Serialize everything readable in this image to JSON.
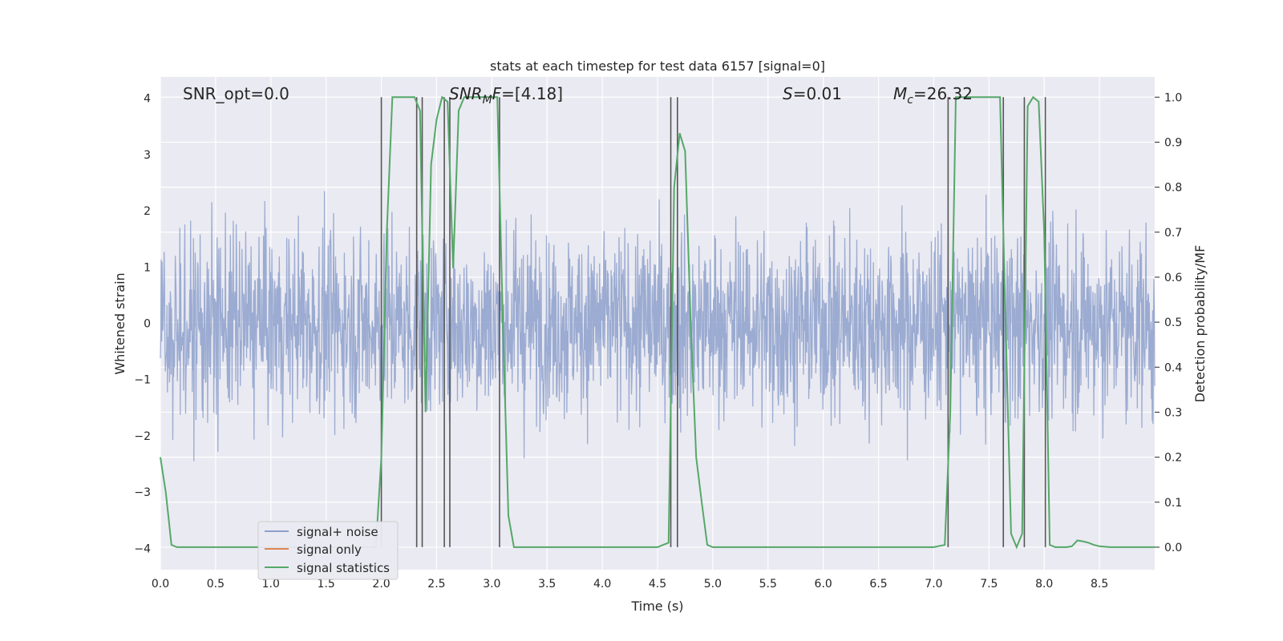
{
  "chart_data": {
    "type": "line",
    "title": "stats at each timestep for test data 6157 [signal=0]",
    "xlabel": "Time (s)",
    "ylabel_left": "Whitened strain",
    "ylabel_right": "Detection probability/MF",
    "xlim": [
      0,
      9
    ],
    "ylim_left": [
      -4.38,
      4.38
    ],
    "ylim_right": [
      -0.05,
      1.045
    ],
    "x_ticks": [
      "0.0",
      "0.5",
      "1.0",
      "1.5",
      "2.0",
      "2.5",
      "3.0",
      "3.5",
      "4.0",
      "4.5",
      "5.0",
      "5.5",
      "6.0",
      "6.5",
      "7.0",
      "7.5",
      "8.0",
      "8.5"
    ],
    "y_ticks_left": [
      "−4",
      "−3",
      "−2",
      "−1",
      "0",
      "1",
      "2",
      "3",
      "4"
    ],
    "y_ticks_right": [
      "0.0",
      "0.1",
      "0.2",
      "0.3",
      "0.4",
      "0.5",
      "0.6",
      "0.7",
      "0.8",
      "0.9",
      "1.0"
    ],
    "grid": true,
    "legend_position": "lower-left",
    "annotations": {
      "snr_opt": "SNR_opt=0.0",
      "snr_mf": "SNR_MF=[4.18]",
      "s_value": "S=0.01",
      "mc_value": "M_c=26.32"
    },
    "series": [
      {
        "name": "signal+ noise",
        "axis": "left",
        "color": "#8da0cb",
        "description_values": "whitened noise, roughly within [-3.5, 3.3], sampled densely over 0-9 s"
      },
      {
        "name": "signal only",
        "axis": "left",
        "color": "#dd8452",
        "x": [],
        "y": []
      },
      {
        "name": "signal statistics",
        "axis": "right",
        "color": "#55a868",
        "x": [
          0.0,
          0.05,
          0.1,
          0.15,
          0.2,
          0.3,
          0.5,
          1.0,
          1.5,
          1.9,
          1.95,
          2.0,
          2.05,
          2.1,
          2.15,
          2.2,
          2.25,
          2.3,
          2.35,
          2.4,
          2.45,
          2.5,
          2.55,
          2.6,
          2.65,
          2.7,
          2.75,
          2.8,
          2.85,
          2.9,
          2.95,
          3.0,
          3.05,
          3.1,
          3.15,
          3.2,
          3.5,
          4.0,
          4.5,
          4.55,
          4.6,
          4.65,
          4.7,
          4.75,
          4.8,
          4.85,
          4.9,
          4.95,
          5.0,
          5.5,
          6.0,
          6.5,
          7.0,
          7.1,
          7.15,
          7.2,
          7.25,
          7.3,
          7.4,
          7.5,
          7.55,
          7.6,
          7.65,
          7.7,
          7.75,
          7.8,
          7.85,
          7.9,
          7.95,
          8.0,
          8.05,
          8.1,
          8.15,
          8.2,
          8.25,
          8.3,
          8.35,
          8.4,
          8.45,
          8.5,
          8.6,
          8.7,
          8.8,
          8.9,
          9.0
        ],
        "y": [
          0.2,
          0.12,
          0.005,
          0.0,
          0.0,
          0.0,
          0.0,
          0.0,
          0.0,
          0.0,
          0.0,
          0.2,
          0.7,
          1.0,
          1.0,
          1.0,
          1.0,
          1.0,
          0.97,
          0.3,
          0.85,
          0.95,
          1.0,
          0.99,
          0.62,
          0.97,
          1.0,
          1.0,
          1.0,
          1.0,
          1.0,
          1.0,
          1.0,
          0.5,
          0.07,
          0.0,
          0.0,
          0.0,
          0.0,
          0.005,
          0.01,
          0.8,
          0.92,
          0.88,
          0.5,
          0.2,
          0.1,
          0.005,
          0.0,
          0.0,
          0.0,
          0.0,
          0.0,
          0.005,
          0.3,
          1.0,
          1.0,
          1.0,
          1.0,
          1.0,
          1.0,
          1.0,
          0.5,
          0.03,
          0.0,
          0.03,
          0.98,
          1.0,
          0.99,
          0.7,
          0.005,
          0.0,
          0.0,
          0.0,
          0.002,
          0.015,
          0.013,
          0.01,
          0.005,
          0.002,
          0.0,
          0.0,
          0.0,
          0.0,
          0.0
        ]
      }
    ],
    "vertical_lines_x": [
      2.0,
      2.32,
      2.37,
      2.57,
      2.62,
      3.07,
      4.62,
      4.68,
      7.13,
      7.63,
      7.82,
      8.01
    ]
  }
}
